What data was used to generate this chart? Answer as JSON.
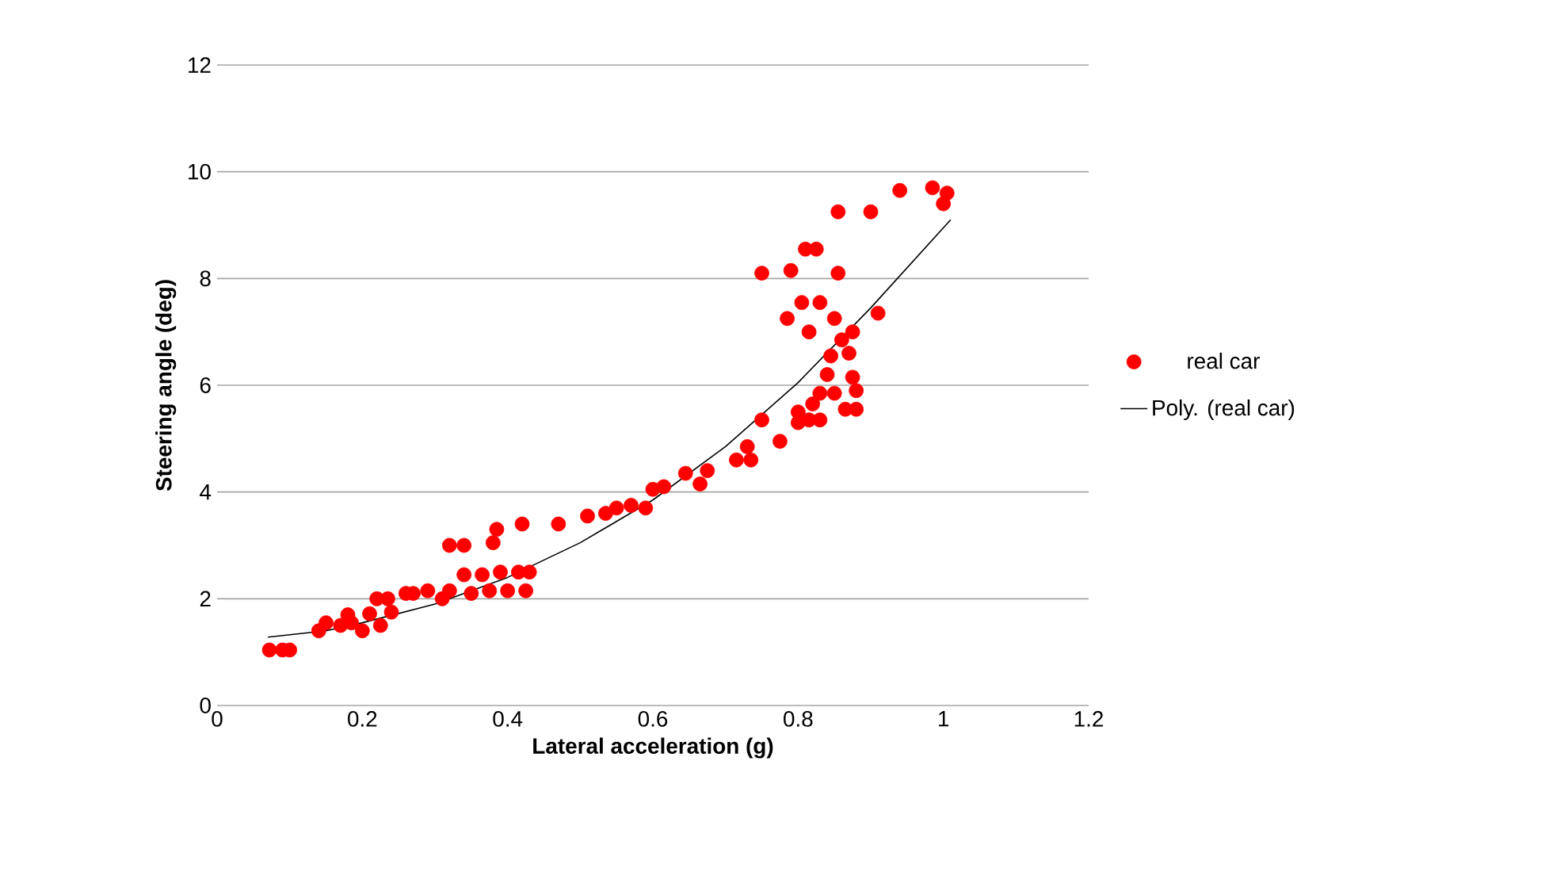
{
  "chart_data": {
    "type": "scatter",
    "xlabel": "Lateral acceleration (g)",
    "ylabel": "Steering angle (deg)",
    "xlim": [
      0,
      1.2
    ],
    "ylim": [
      0,
      12
    ],
    "xticks": [
      0,
      0.2,
      0.4,
      0.6,
      0.8,
      1,
      1.2
    ],
    "yticks": [
      0,
      2,
      4,
      6,
      8,
      10,
      12
    ],
    "grid": "y",
    "legend": "right",
    "marker": "circle",
    "series": [
      {
        "name": "real car",
        "color": "#ff0000",
        "x": [
          0.072,
          0.09,
          0.1,
          0.14,
          0.15,
          0.17,
          0.185,
          0.18,
          0.2,
          0.21,
          0.22,
          0.225,
          0.235,
          0.24,
          0.26,
          0.27,
          0.29,
          0.31,
          0.32,
          0.32,
          0.34,
          0.34,
          0.35,
          0.365,
          0.375,
          0.38,
          0.385,
          0.39,
          0.4,
          0.415,
          0.42,
          0.425,
          0.43,
          0.47,
          0.51,
          0.535,
          0.55,
          0.57,
          0.59,
          0.6,
          0.615,
          0.645,
          0.665,
          0.675,
          0.715,
          0.73,
          0.735,
          0.75,
          0.75,
          0.775,
          0.785,
          0.79,
          0.8,
          0.8,
          0.805,
          0.81,
          0.815,
          0.815,
          0.82,
          0.825,
          0.83,
          0.83,
          0.83,
          0.84,
          0.845,
          0.85,
          0.85,
          0.855,
          0.855,
          0.86,
          0.865,
          0.87,
          0.875,
          0.875,
          0.88,
          0.88,
          0.9,
          0.91,
          0.94,
          0.985,
          1.0,
          1.005
        ],
        "values": [
          1.04,
          1.04,
          1.04,
          1.4,
          1.55,
          1.5,
          1.55,
          1.7,
          1.4,
          1.72,
          2.0,
          1.5,
          2.0,
          1.75,
          2.1,
          2.1,
          2.15,
          2.0,
          2.15,
          3.0,
          3.0,
          2.45,
          2.1,
          2.45,
          2.15,
          3.05,
          3.3,
          2.5,
          2.15,
          2.5,
          3.4,
          2.15,
          2.5,
          3.4,
          3.55,
          3.6,
          3.7,
          3.75,
          3.7,
          4.05,
          4.1,
          4.35,
          4.15,
          4.4,
          4.6,
          4.85,
          4.6,
          5.35,
          8.1,
          4.95,
          7.25,
          8.15,
          5.3,
          5.5,
          7.55,
          8.55,
          5.35,
          7.0,
          5.65,
          8.55,
          5.35,
          5.85,
          7.55,
          6.2,
          6.55,
          5.85,
          7.25,
          8.1,
          9.25,
          6.85,
          5.55,
          6.6,
          7.0,
          6.15,
          5.9,
          5.55,
          9.25,
          7.35,
          9.65,
          9.7,
          9.4,
          9.6
        ]
      },
      {
        "name": "Poly. (real car)",
        "type": "line",
        "color": "#000000",
        "marker": "none",
        "line_style": "solid",
        "x": [
          0.07,
          0.15,
          0.2,
          0.3,
          0.4,
          0.5,
          0.6,
          0.7,
          0.8,
          0.9,
          1.01
        ],
        "values": [
          1.28,
          1.4,
          1.55,
          1.9,
          2.4,
          3.05,
          3.85,
          4.85,
          6.05,
          7.45,
          9.1
        ]
      }
    ]
  }
}
